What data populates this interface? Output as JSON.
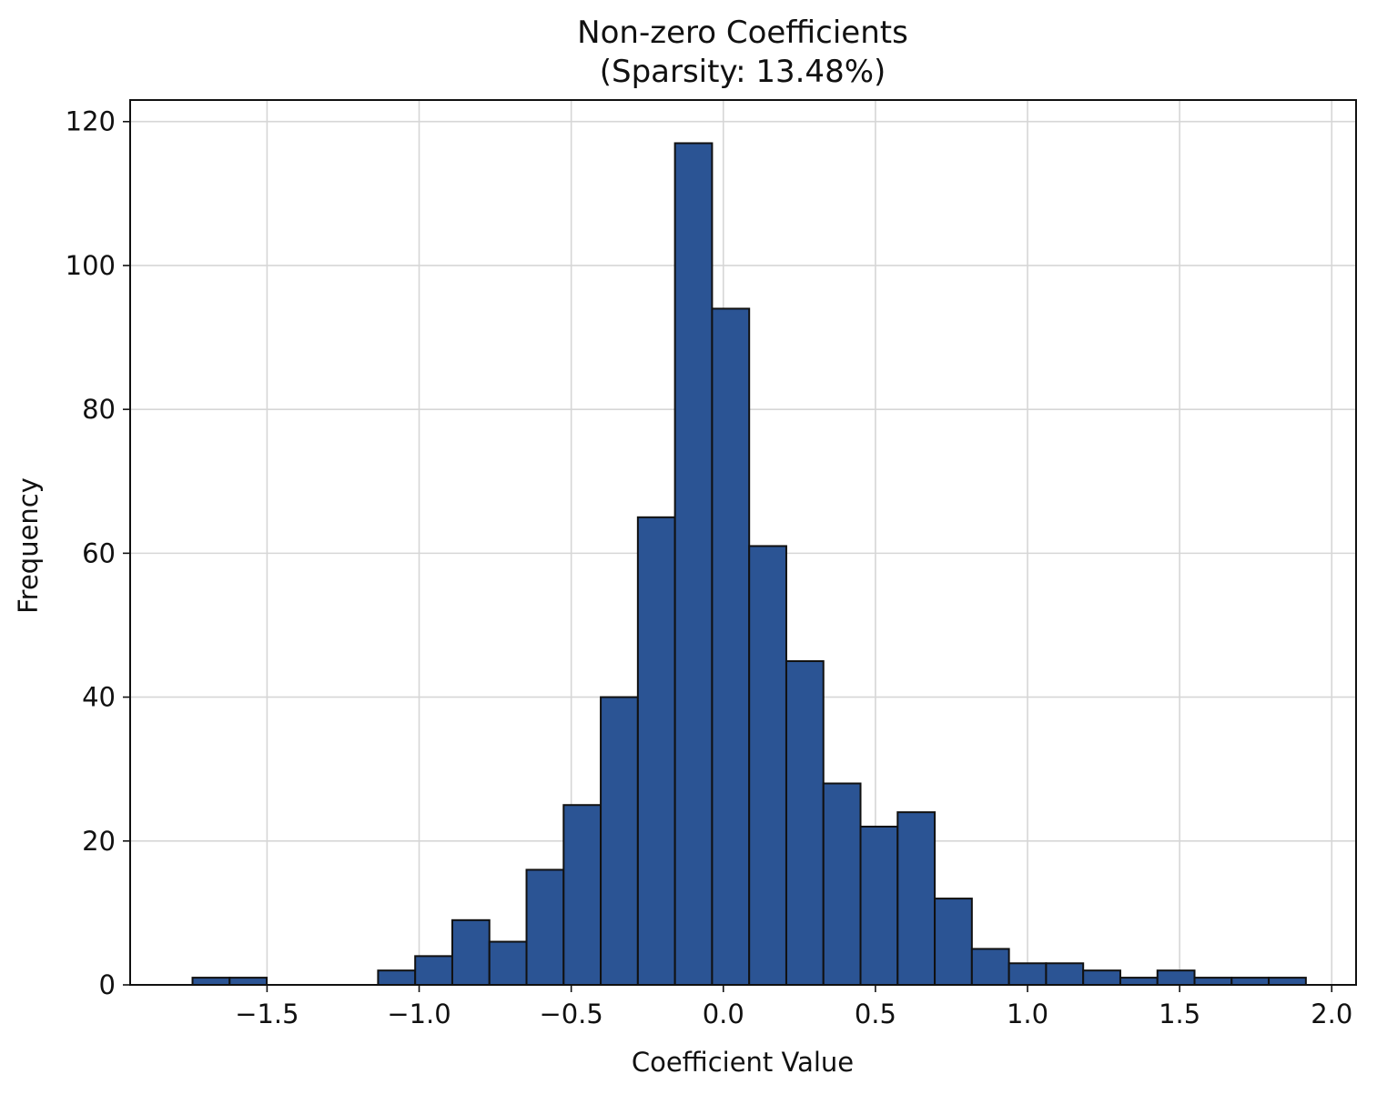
{
  "chart_data": {
    "type": "bar",
    "title": "Non-zero Coefficients",
    "subtitle": "(Sparsity: 13.48%)",
    "xlabel": "Coefficient Value",
    "ylabel": "Frequency",
    "xlim": [
      -1.95,
      2.08
    ],
    "ylim": [
      0,
      123
    ],
    "grid": true,
    "bar_color": "#2b5494",
    "edge_color": "#111111",
    "x_ticks": [
      {
        "value": -1.5,
        "label": "−1.5"
      },
      {
        "value": -1.0,
        "label": "−1.0"
      },
      {
        "value": -0.5,
        "label": "−0.5"
      },
      {
        "value": 0.0,
        "label": "0.0"
      },
      {
        "value": 0.5,
        "label": "0.5"
      },
      {
        "value": 1.0,
        "label": "1.0"
      },
      {
        "value": 1.5,
        "label": "1.5"
      },
      {
        "value": 2.0,
        "label": "2.0"
      }
    ],
    "y_ticks": [
      {
        "value": 0,
        "label": "0"
      },
      {
        "value": 20,
        "label": "20"
      },
      {
        "value": 40,
        "label": "40"
      },
      {
        "value": 60,
        "label": "60"
      },
      {
        "value": 80,
        "label": "80"
      },
      {
        "value": 100,
        "label": "100"
      },
      {
        "value": 120,
        "label": "120"
      }
    ],
    "bin_edges": [
      -1.745,
      -1.623,
      -1.501,
      -1.379,
      -1.257,
      -1.135,
      -1.013,
      -0.891,
      -0.769,
      -0.647,
      -0.525,
      -0.403,
      -0.281,
      -0.159,
      -0.037,
      0.085,
      0.207,
      0.329,
      0.451,
      0.573,
      0.695,
      0.817,
      0.939,
      1.061,
      1.183,
      1.305,
      1.427,
      1.549,
      1.671,
      1.793,
      1.915
    ],
    "counts": [
      1,
      1,
      0,
      0,
      0,
      2,
      4,
      9,
      6,
      16,
      25,
      40,
      65,
      117,
      94,
      61,
      45,
      28,
      22,
      24,
      12,
      5,
      3,
      3,
      2,
      1,
      2,
      1,
      1,
      1
    ]
  }
}
